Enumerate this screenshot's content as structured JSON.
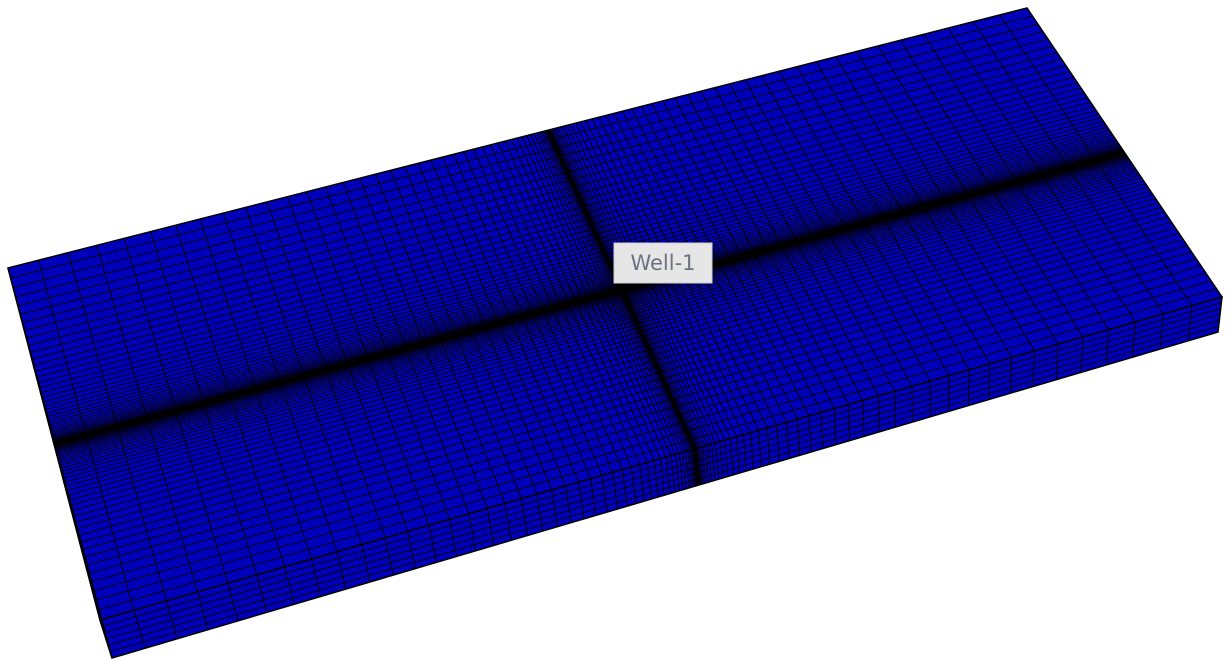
{
  "label": "Well-1"
}
